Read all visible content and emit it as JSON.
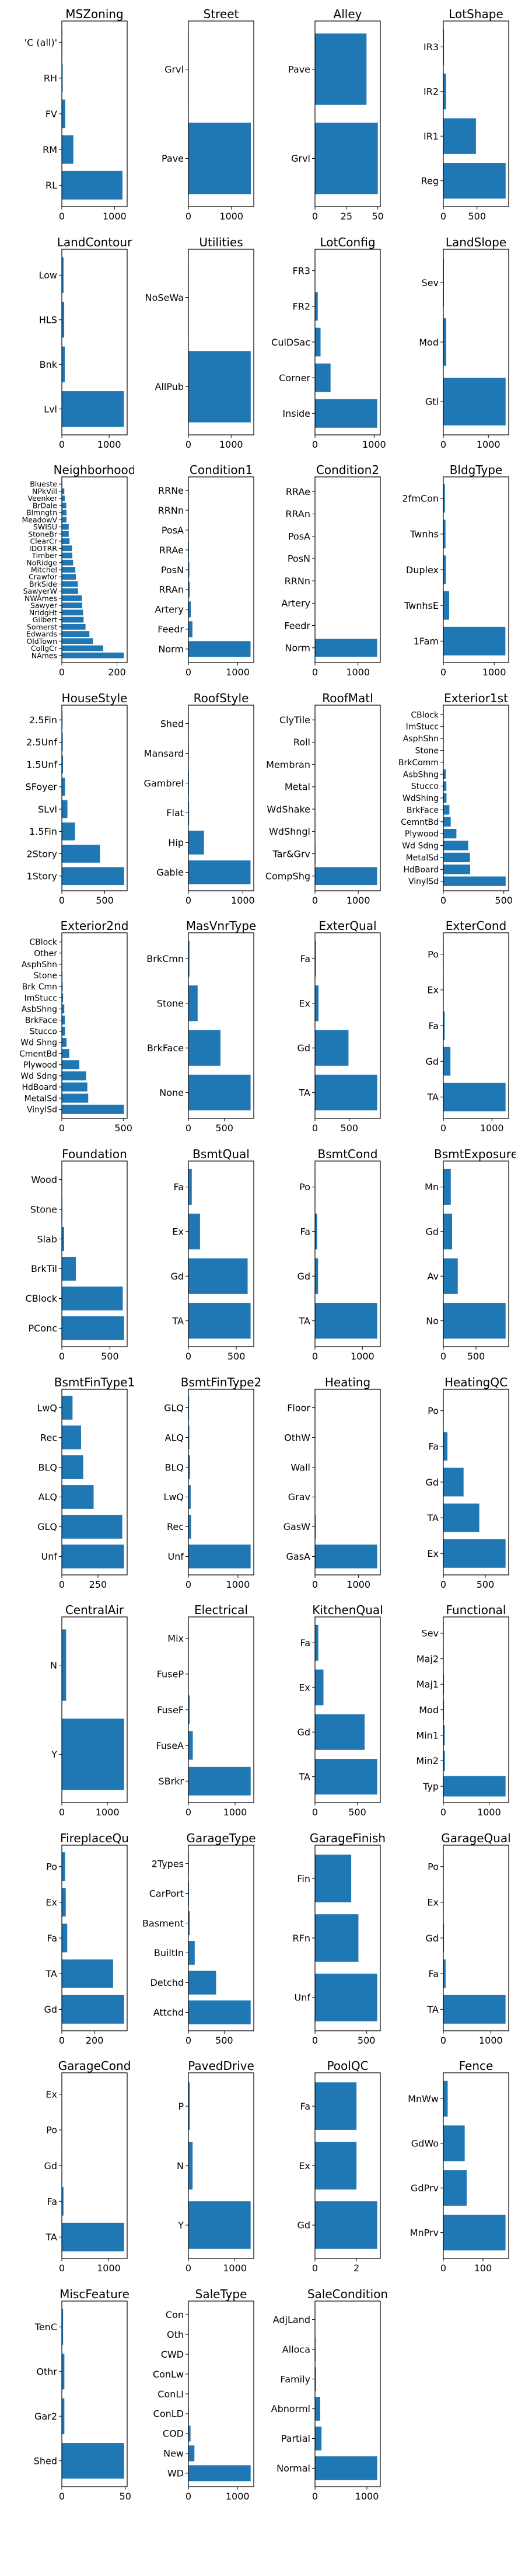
{
  "style": {
    "bar_color": "#1f77b4",
    "background": "#ffffff"
  },
  "chart_data": [
    {
      "type": "bar",
      "orientation": "horizontal",
      "title": "MSZoning",
      "categories": [
        "RL",
        "RM",
        "FV",
        "RH",
        "'C (all)'"
      ],
      "values": [
        1151,
        218,
        65,
        16,
        10
      ],
      "xlim": [
        0,
        1240
      ],
      "xticks": [
        0,
        1000
      ]
    },
    {
      "type": "bar",
      "orientation": "horizontal",
      "title": "Street",
      "categories": [
        "Pave",
        "Grvl"
      ],
      "values": [
        1454,
        6
      ],
      "xlim": [
        0,
        1520
      ],
      "xticks": [
        0,
        1000
      ]
    },
    {
      "type": "bar",
      "orientation": "horizontal",
      "title": "Alley",
      "categories": [
        "Grvl",
        "Pave"
      ],
      "values": [
        50,
        41
      ],
      "xlim": [
        0,
        52
      ],
      "xticks": [
        0,
        25,
        50
      ]
    },
    {
      "type": "bar",
      "orientation": "horizontal",
      "title": "LotShape",
      "categories": [
        "Reg",
        "IR1",
        "IR2",
        "IR3"
      ],
      "values": [
        925,
        484,
        41,
        10
      ],
      "xlim": [
        0,
        970
      ],
      "xticks": [
        0,
        500
      ]
    },
    {
      "type": "bar",
      "orientation": "horizontal",
      "title": "LandContour",
      "categories": [
        "Lvl",
        "Bnk",
        "HLS",
        "Low"
      ],
      "values": [
        1311,
        63,
        50,
        36
      ],
      "xlim": [
        0,
        1380
      ],
      "xticks": [
        0,
        1000
      ]
    },
    {
      "type": "bar",
      "orientation": "horizontal",
      "title": "Utilities",
      "categories": [
        "AllPub",
        "NoSeWa"
      ],
      "values": [
        1459,
        1
      ],
      "xlim": [
        0,
        1530
      ],
      "xticks": [
        0,
        1000
      ]
    },
    {
      "type": "bar",
      "orientation": "horizontal",
      "title": "LotConfig",
      "categories": [
        "Inside",
        "Corner",
        "CulDSac",
        "FR2",
        "FR3"
      ],
      "values": [
        1052,
        263,
        94,
        47,
        4
      ],
      "xlim": [
        0,
        1105
      ],
      "xticks": [
        0,
        1000
      ]
    },
    {
      "type": "bar",
      "orientation": "horizontal",
      "title": "LandSlope",
      "categories": [
        "Gtl",
        "Mod",
        "Sev"
      ],
      "values": [
        1382,
        65,
        13
      ],
      "xlim": [
        0,
        1450
      ],
      "xticks": [
        0,
        1000
      ]
    },
    {
      "type": "bar",
      "orientation": "horizontal",
      "title": "Neighborhood",
      "categories": [
        "NAmes",
        "CollgCr",
        "OldTown",
        "Edwards",
        "Somerst",
        "Gilbert",
        "NridgHt",
        "Sawyer",
        "NWAmes",
        "SawyerW",
        "BrkSide",
        "Crawfor",
        "Mitchel",
        "NoRidge",
        "Timber",
        "IDOTRR",
        "ClearCr",
        "StoneBr",
        "SWISU",
        "MeadowV",
        "Blmngtn",
        "BrDale",
        "Veenker",
        "NPkVill",
        "Blueste"
      ],
      "values": [
        225,
        150,
        113,
        100,
        86,
        79,
        77,
        74,
        73,
        59,
        58,
        51,
        49,
        41,
        38,
        37,
        28,
        25,
        25,
        17,
        17,
        16,
        11,
        9,
        2
      ],
      "xlim": [
        0,
        237
      ],
      "xticks": [
        0,
        200
      ]
    },
    {
      "type": "bar",
      "orientation": "horizontal",
      "title": "Condition1",
      "categories": [
        "Norm",
        "Feedr",
        "Artery",
        "RRAn",
        "PosN",
        "RRAe",
        "PosA",
        "RRNn",
        "RRNe"
      ],
      "values": [
        1260,
        81,
        48,
        26,
        19,
        11,
        8,
        5,
        2
      ],
      "xlim": [
        0,
        1325
      ],
      "xticks": [
        0,
        1000
      ]
    },
    {
      "type": "bar",
      "orientation": "horizontal",
      "title": "Condition2",
      "categories": [
        "Norm",
        "Feedr",
        "Artery",
        "RRNn",
        "PosN",
        "PosA",
        "RRAn",
        "RRAe"
      ],
      "values": [
        1445,
        6,
        2,
        2,
        2,
        1,
        1,
        1
      ],
      "xlim": [
        0,
        1520
      ],
      "xticks": [
        0,
        1000
      ]
    },
    {
      "type": "bar",
      "orientation": "horizontal",
      "title": "BldgType",
      "categories": [
        "1Fam",
        "TwnhsE",
        "Duplex",
        "Twnhs",
        "2fmCon"
      ],
      "values": [
        1220,
        114,
        52,
        43,
        31
      ],
      "xlim": [
        0,
        1285
      ],
      "xticks": [
        0,
        1000
      ]
    },
    {
      "type": "bar",
      "orientation": "horizontal",
      "title": "HouseStyle",
      "categories": [
        "1Story",
        "2Story",
        "1.5Fin",
        "SLvl",
        "SFoyer",
        "1.5Unf",
        "2.5Unf",
        "2.5Fin"
      ],
      "values": [
        726,
        445,
        154,
        65,
        37,
        14,
        11,
        8
      ],
      "xlim": [
        0,
        762
      ],
      "xticks": [
        0,
        500
      ]
    },
    {
      "type": "bar",
      "orientation": "horizontal",
      "title": "RoofStyle",
      "categories": [
        "Gable",
        "Hip",
        "Flat",
        "Gambrel",
        "Mansard",
        "Shed"
      ],
      "values": [
        1141,
        286,
        13,
        11,
        7,
        2
      ],
      "xlim": [
        0,
        1200
      ],
      "xticks": [
        0,
        1000
      ]
    },
    {
      "type": "bar",
      "orientation": "horizontal",
      "title": "RoofMatl",
      "categories": [
        "CompShg",
        "Tar&Grv",
        "WdShngl",
        "WdShake",
        "Metal",
        "Membran",
        "Roll",
        "ClyTile"
      ],
      "values": [
        1434,
        11,
        6,
        5,
        1,
        1,
        1,
        1
      ],
      "xlim": [
        0,
        1510
      ],
      "xticks": [
        0,
        1000
      ]
    },
    {
      "type": "bar",
      "orientation": "horizontal",
      "title": "Exterior1st",
      "categories": [
        "VinylSd",
        "HdBoard",
        "MetalSd",
        "Wd Sdng",
        "Plywood",
        "CemntBd",
        "BrkFace",
        "WdShing",
        "Stucco",
        "AsbShng",
        "BrkComm",
        "Stone",
        "AsphShn",
        "ImStucc",
        "CBlock"
      ],
      "values": [
        515,
        222,
        220,
        206,
        108,
        61,
        50,
        26,
        25,
        20,
        2,
        2,
        1,
        1,
        1
      ],
      "xlim": [
        0,
        540
      ],
      "xticks": [
        0,
        500
      ]
    },
    {
      "type": "bar",
      "orientation": "horizontal",
      "title": "Exterior2nd",
      "categories": [
        "VinylSd",
        "MetalSd",
        "HdBoard",
        "Wd Sdng",
        "Plywood",
        "CmentBd",
        "Wd Shng",
        "Stucco",
        "BrkFace",
        "AsbShng",
        "ImStucc",
        "Brk Cmn",
        "Stone",
        "AsphShn",
        "Other",
        "CBlock"
      ],
      "values": [
        504,
        214,
        207,
        197,
        142,
        60,
        38,
        26,
        25,
        20,
        10,
        7,
        5,
        3,
        1,
        1
      ],
      "xlim": [
        0,
        530
      ],
      "xticks": [
        0,
        500
      ]
    },
    {
      "type": "bar",
      "orientation": "horizontal",
      "title": "MasVnrType",
      "categories": [
        "None",
        "BrkFace",
        "Stone",
        "BrkCmn"
      ],
      "values": [
        864,
        445,
        128,
        15
      ],
      "xlim": [
        0,
        908
      ],
      "xticks": [
        0,
        500
      ]
    },
    {
      "type": "bar",
      "orientation": "horizontal",
      "title": "ExterQual",
      "categories": [
        "TA",
        "Gd",
        "Ex",
        "Fa"
      ],
      "values": [
        906,
        488,
        52,
        14
      ],
      "xlim": [
        0,
        952
      ],
      "xticks": [
        0,
        500
      ]
    },
    {
      "type": "bar",
      "orientation": "horizontal",
      "title": "ExterCond",
      "categories": [
        "TA",
        "Gd",
        "Fa",
        "Ex",
        "Po"
      ],
      "values": [
        1282,
        146,
        28,
        3,
        1
      ],
      "xlim": [
        0,
        1346
      ],
      "xticks": [
        0,
        1000
      ]
    },
    {
      "type": "bar",
      "orientation": "horizontal",
      "title": "Foundation",
      "categories": [
        "PConc",
        "CBlock",
        "BrkTil",
        "Slab",
        "Stone",
        "Wood"
      ],
      "values": [
        647,
        634,
        146,
        24,
        6,
        3
      ],
      "xlim": [
        0,
        680
      ],
      "xticks": [
        0,
        500
      ]
    },
    {
      "type": "bar",
      "orientation": "horizontal",
      "title": "BsmtQual",
      "categories": [
        "TA",
        "Gd",
        "Ex",
        "Fa"
      ],
      "values": [
        649,
        618,
        121,
        35
      ],
      "xlim": [
        0,
        682
      ],
      "xticks": [
        0,
        500
      ]
    },
    {
      "type": "bar",
      "orientation": "horizontal",
      "title": "BsmtCond",
      "categories": [
        "TA",
        "Gd",
        "Fa",
        "Po"
      ],
      "values": [
        1311,
        65,
        45,
        2
      ],
      "xlim": [
        0,
        1377
      ],
      "xticks": [
        0,
        1000
      ]
    },
    {
      "type": "bar",
      "orientation": "horizontal",
      "title": "BsmtExposure",
      "categories": [
        "No",
        "Av",
        "Gd",
        "Mn"
      ],
      "values": [
        953,
        221,
        134,
        114
      ],
      "xlim": [
        0,
        1000
      ],
      "xticks": [
        0,
        500
      ]
    },
    {
      "type": "bar",
      "orientation": "horizontal",
      "title": "BsmtFinType1",
      "categories": [
        "Unf",
        "GLQ",
        "ALQ",
        "BLQ",
        "Rec",
        "LwQ"
      ],
      "values": [
        430,
        418,
        220,
        148,
        133,
        74
      ],
      "xlim": [
        0,
        452
      ],
      "xticks": [
        0,
        250
      ]
    },
    {
      "type": "bar",
      "orientation": "horizontal",
      "title": "BsmtFinType2",
      "categories": [
        "Unf",
        "Rec",
        "LwQ",
        "BLQ",
        "ALQ",
        "GLQ"
      ],
      "values": [
        1256,
        54,
        46,
        33,
        19,
        14
      ],
      "xlim": [
        0,
        1319
      ],
      "xticks": [
        0,
        1000
      ]
    },
    {
      "type": "bar",
      "orientation": "horizontal",
      "title": "Heating",
      "categories": [
        "GasA",
        "GasW",
        "Grav",
        "Wall",
        "OthW",
        "Floor"
      ],
      "values": [
        1428,
        18,
        7,
        4,
        2,
        1
      ],
      "xlim": [
        0,
        1500
      ],
      "xticks": [
        0,
        1000
      ]
    },
    {
      "type": "bar",
      "orientation": "horizontal",
      "title": "HeatingQC",
      "categories": [
        "Ex",
        "TA",
        "Gd",
        "Fa",
        "Po"
      ],
      "values": [
        741,
        428,
        241,
        49,
        1
      ],
      "xlim": [
        0,
        778
      ],
      "xticks": [
        0,
        500
      ]
    },
    {
      "type": "bar",
      "orientation": "horizontal",
      "title": "CentralAir",
      "categories": [
        "Y",
        "N"
      ],
      "values": [
        1365,
        95
      ],
      "xlim": [
        0,
        1433
      ],
      "xticks": [
        0,
        1000
      ]
    },
    {
      "type": "bar",
      "orientation": "horizontal",
      "title": "Electrical",
      "categories": [
        "SBrkr",
        "FuseA",
        "FuseF",
        "FuseP",
        "Mix"
      ],
      "values": [
        1334,
        94,
        27,
        3,
        1
      ],
      "xlim": [
        0,
        1400
      ],
      "xticks": [
        0,
        1000
      ]
    },
    {
      "type": "bar",
      "orientation": "horizontal",
      "title": "KitchenQual",
      "categories": [
        "TA",
        "Gd",
        "Ex",
        "Fa"
      ],
      "values": [
        735,
        586,
        100,
        39
      ],
      "xlim": [
        0,
        772
      ],
      "xticks": [
        0,
        500
      ]
    },
    {
      "type": "bar",
      "orientation": "horizontal",
      "title": "Functional",
      "categories": [
        "Typ",
        "Min2",
        "Min1",
        "Mod",
        "Maj1",
        "Maj2",
        "Sev"
      ],
      "values": [
        1360,
        34,
        31,
        15,
        14,
        5,
        1
      ],
      "xlim": [
        0,
        1428
      ],
      "xticks": [
        0,
        1000
      ]
    },
    {
      "type": "bar",
      "orientation": "horizontal",
      "title": "FireplaceQu",
      "categories": [
        "Gd",
        "TA",
        "Fa",
        "Ex",
        "Po"
      ],
      "values": [
        380,
        313,
        33,
        24,
        20
      ],
      "xlim": [
        0,
        399
      ],
      "xticks": [
        0,
        200
      ]
    },
    {
      "type": "bar",
      "orientation": "horizontal",
      "title": "GarageType",
      "categories": [
        "Attchd",
        "Detchd",
        "BuiltIn",
        "Basment",
        "CarPort",
        "2Types"
      ],
      "values": [
        870,
        387,
        88,
        19,
        9,
        6
      ],
      "xlim": [
        0,
        913
      ],
      "xticks": [
        0,
        500
      ]
    },
    {
      "type": "bar",
      "orientation": "horizontal",
      "title": "GarageFinish",
      "categories": [
        "Unf",
        "RFn",
        "Fin"
      ],
      "values": [
        605,
        422,
        352
      ],
      "xlim": [
        0,
        635
      ],
      "xticks": [
        0,
        500
      ]
    },
    {
      "type": "bar",
      "orientation": "horizontal",
      "title": "GarageQual",
      "categories": [
        "TA",
        "Fa",
        "Gd",
        "Ex",
        "Po"
      ],
      "values": [
        1311,
        48,
        14,
        3,
        3
      ],
      "xlim": [
        0,
        1377
      ],
      "xticks": [
        0,
        1000
      ]
    },
    {
      "type": "bar",
      "orientation": "horizontal",
      "title": "GarageCond",
      "categories": [
        "TA",
        "Fa",
        "Gd",
        "Po",
        "Ex"
      ],
      "values": [
        1326,
        35,
        9,
        7,
        2
      ],
      "xlim": [
        0,
        1392
      ],
      "xticks": [
        0,
        1000
      ]
    },
    {
      "type": "bar",
      "orientation": "horizontal",
      "title": "PavedDrive",
      "categories": [
        "Y",
        "N",
        "P"
      ],
      "values": [
        1340,
        90,
        30
      ],
      "xlim": [
        0,
        1407
      ],
      "xticks": [
        0,
        1000
      ]
    },
    {
      "type": "bar",
      "orientation": "horizontal",
      "title": "PoolQC",
      "categories": [
        "Gd",
        "Ex",
        "Fa"
      ],
      "values": [
        3,
        2,
        2
      ],
      "xlim": [
        0,
        3.15
      ],
      "xticks": [
        0,
        2
      ]
    },
    {
      "type": "bar",
      "orientation": "horizontal",
      "title": "Fence",
      "categories": [
        "MnPrv",
        "GdPrv",
        "GdWo",
        "MnWw"
      ],
      "values": [
        157,
        59,
        54,
        11
      ],
      "xlim": [
        0,
        165
      ],
      "xticks": [
        0,
        100
      ]
    },
    {
      "type": "bar",
      "orientation": "horizontal",
      "title": "MiscFeature",
      "categories": [
        "Shed",
        "Gar2",
        "Othr",
        "TenC"
      ],
      "values": [
        49,
        2,
        2,
        1
      ],
      "xlim": [
        0,
        51.5
      ],
      "xticks": [
        0,
        50
      ]
    },
    {
      "type": "bar",
      "orientation": "horizontal",
      "title": "SaleType",
      "categories": [
        "WD",
        "New",
        "COD",
        "ConLD",
        "ConLI",
        "ConLw",
        "CWD",
        "Oth",
        "Con"
      ],
      "values": [
        1267,
        122,
        43,
        9,
        5,
        5,
        4,
        3,
        2
      ],
      "xlim": [
        0,
        1330
      ],
      "xticks": [
        0,
        1000
      ]
    },
    {
      "type": "bar",
      "orientation": "horizontal",
      "title": "SaleCondition",
      "categories": [
        "Normal",
        "Partial",
        "Abnorml",
        "Family",
        "Alloca",
        "AdjLand"
      ],
      "values": [
        1198,
        125,
        101,
        20,
        12,
        4
      ],
      "xlim": [
        0,
        1258
      ],
      "xticks": [
        0,
        1000
      ]
    }
  ]
}
